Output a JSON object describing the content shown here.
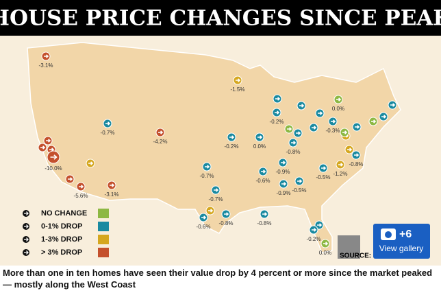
{
  "header": {
    "title": "HOUSE PRICE CHANGES SINCE PEAK"
  },
  "legend": [
    {
      "label": "NO CHANGE",
      "color": "#8db843"
    },
    {
      "label": "0-1% DROP",
      "color": "#1a8aa0"
    },
    {
      "label": "1-3% DROP",
      "color": "#d5a71f"
    },
    {
      "label": "> 3% DROP",
      "color": "#c4502c"
    }
  ],
  "markers": [
    {
      "label": "-3.1%",
      "color": "#c4502c"
    },
    {
      "label": null,
      "color": "#c4502c"
    },
    {
      "label": null,
      "color": "#c4502c"
    },
    {
      "label": null,
      "color": "#c4502c"
    },
    {
      "label": "-10.0%",
      "color": "#c4502c"
    },
    {
      "label": null,
      "color": "#c4502c"
    },
    {
      "label": "-5.6%",
      "color": "#c4502c"
    },
    {
      "label": "-3.1%",
      "color": "#c4502c"
    },
    {
      "label": "-4.2%",
      "color": "#c4502c"
    },
    {
      "label": null,
      "color": "#d5a71f"
    },
    {
      "label": "-1.5%",
      "color": "#d5a71f"
    },
    {
      "label": null,
      "color": "#d5a71f"
    },
    {
      "label": null,
      "color": "#d5a71f"
    },
    {
      "label": "-1.2%",
      "color": "#d5a71f"
    },
    {
      "label": null,
      "color": "#d5a71f"
    },
    {
      "label": "-0.7%",
      "color": "#1a8aa0"
    },
    {
      "label": "-0.2%",
      "color": "#1a8aa0"
    },
    {
      "label": "0.0%",
      "color": "#1a8aa0"
    },
    {
      "label": "-0.7%",
      "color": "#1a8aa0"
    },
    {
      "label": "-0.7%",
      "color": "#1a8aa0"
    },
    {
      "label": "-0.6%",
      "color": "#1a8aa0"
    },
    {
      "label": "-0.8%",
      "color": "#1a8aa0"
    },
    {
      "label": "-0.8%",
      "color": "#1a8aa0"
    },
    {
      "label": "-0.6%",
      "color": "#1a8aa0"
    },
    {
      "label": null,
      "color": "#1a8aa0"
    },
    {
      "label": "-0.2%",
      "color": "#1a8aa0"
    },
    {
      "label": null,
      "color": "#1a8aa0"
    },
    {
      "label": "-0.8%",
      "color": "#1a8aa0"
    },
    {
      "label": "-0.9%",
      "color": "#1a8aa0"
    },
    {
      "label": "-0.9%",
      "color": "#1a8aa0"
    },
    {
      "label": "-0.5%",
      "color": "#1a8aa0"
    },
    {
      "label": "-0.5%",
      "color": "#1a8aa0"
    },
    {
      "label": "-0.8%",
      "color": "#1a8aa0"
    },
    {
      "label": null,
      "color": "#1a8aa0"
    },
    {
      "label": null,
      "color": "#1a8aa0"
    },
    {
      "label": null,
      "color": "#1a8aa0"
    },
    {
      "label": "-0.3%",
      "color": "#1a8aa0"
    },
    {
      "label": null,
      "color": "#1a8aa0"
    },
    {
      "label": null,
      "color": "#1a8aa0"
    },
    {
      "label": null,
      "color": "#1a8aa0"
    },
    {
      "label": null,
      "color": "#1a8aa0"
    },
    {
      "label": "-0.2%",
      "color": "#1a8aa0"
    },
    {
      "label": "0.0%",
      "color": "#8db843"
    },
    {
      "label": null,
      "color": "#8db843"
    },
    {
      "label": null,
      "color": "#8db843"
    },
    {
      "label": "0.0%",
      "color": "#8db843"
    },
    {
      "label": null,
      "color": "#8db843"
    }
  ],
  "source": "SOURCE:",
  "gallery": {
    "count": "+6",
    "label": "View gallery"
  },
  "caption": "More than one in ten homes have seen their value drop by 4 percent or more since the market peaked — mostly along the West Coast"
}
